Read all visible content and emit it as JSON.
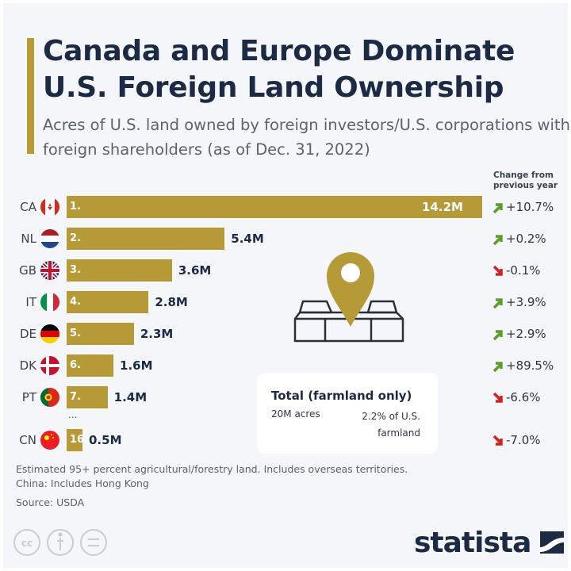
{
  "title": "Canada and Europe Dominate U.S. Foreign Land Ownership",
  "subtitle": "Acres of U.S. land owned by foreign investors/U.S. corporations with foreign shareholders (as of Dec. 31, 2022)",
  "change_header": "Change from previous year",
  "colors": {
    "bar": "#b59a37",
    "up": "#5a9e2a",
    "down": "#d81e1e",
    "title": "#1c2a44"
  },
  "chart_data": {
    "type": "bar",
    "orientation": "horizontal",
    "unit": "million acres",
    "categories": [
      "CA",
      "NL",
      "GB",
      "IT",
      "DE",
      "DK",
      "PT",
      "CN"
    ],
    "ranks": [
      "1.",
      "2.",
      "3.",
      "4.",
      "5.",
      "6.",
      "7.",
      "16."
    ],
    "values": [
      14.2,
      5.4,
      3.6,
      2.8,
      2.3,
      1.6,
      1.4,
      0.5
    ],
    "labels": [
      "14.2M",
      "5.4M",
      "3.6M",
      "2.8M",
      "2.3M",
      "1.6M",
      "1.4M",
      "0.5M"
    ],
    "change": [
      "+10.7%",
      "+0.2%",
      "-0.1%",
      "+3.9%",
      "+2.9%",
      "+89.5%",
      "-6.6%",
      "-7.0%"
    ],
    "change_direction": [
      "up",
      "up",
      "down",
      "up",
      "up",
      "up",
      "down",
      "down"
    ],
    "flags": [
      "canada-flag",
      "netherlands-flag",
      "uk-flag",
      "italy-flag",
      "germany-flag",
      "denmark-flag",
      "portugal-flag",
      "china-flag"
    ],
    "gap_marker": "...",
    "xlim": [
      0,
      14.2
    ],
    "grid": false
  },
  "total": {
    "title": "Total (farmland only)",
    "acres": "20M acres",
    "share": "2.2% of U.S. farmland"
  },
  "notes": [
    "Estimated 95+ percent agricultural/forestry land. Includes overseas territories.",
    "China: Includes Hong Kong",
    "Source: USDA"
  ],
  "logo": "statista"
}
